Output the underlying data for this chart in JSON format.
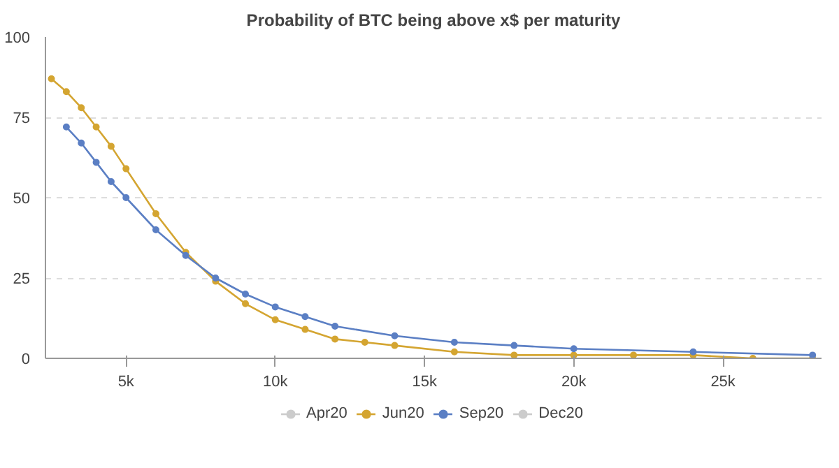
{
  "chart_data": {
    "type": "line",
    "title": "Probability of BTC being above x$ per maturity",
    "xlim": [
      2300,
      28300
    ],
    "ylim": [
      0,
      100
    ],
    "xticks": [
      {
        "value": 5000,
        "label": "5k"
      },
      {
        "value": 10000,
        "label": "10k"
      },
      {
        "value": 15000,
        "label": "15k"
      },
      {
        "value": 20000,
        "label": "20k"
      },
      {
        "value": 25000,
        "label": "25k"
      }
    ],
    "yticks": [
      0,
      25,
      50,
      75,
      100
    ],
    "grid": "y",
    "legend": "bottom",
    "marker": "circle",
    "line_style": "solid",
    "series": [
      {
        "name": "Apr20",
        "color": "#cccccc"
      },
      {
        "name": "Jun20",
        "color": "#d4a531",
        "x": [
          2500,
          3000,
          3500,
          4000,
          4500,
          5000,
          6000,
          7000,
          8000,
          9000,
          10000,
          11000,
          12000,
          13000,
          14000,
          16000,
          18000,
          20000,
          22000,
          24000,
          26000,
          28000
        ],
        "values": [
          87,
          83,
          78,
          72,
          66,
          59,
          45,
          33,
          24,
          17,
          12,
          9,
          6,
          5,
          4,
          2,
          1,
          1,
          1,
          1,
          0,
          0
        ]
      },
      {
        "name": "Sep20",
        "color": "#5b7fc4",
        "x": [
          3000,
          3500,
          4000,
          4500,
          5000,
          6000,
          7000,
          8000,
          9000,
          10000,
          11000,
          12000,
          14000,
          16000,
          18000,
          20000,
          24000,
          28000
        ],
        "values": [
          72,
          67,
          61,
          55,
          50,
          40,
          32,
          25,
          20,
          16,
          13,
          10,
          7,
          5,
          4,
          3,
          2,
          1
        ]
      },
      {
        "name": "Dec20",
        "color": "#cccccc"
      }
    ]
  }
}
